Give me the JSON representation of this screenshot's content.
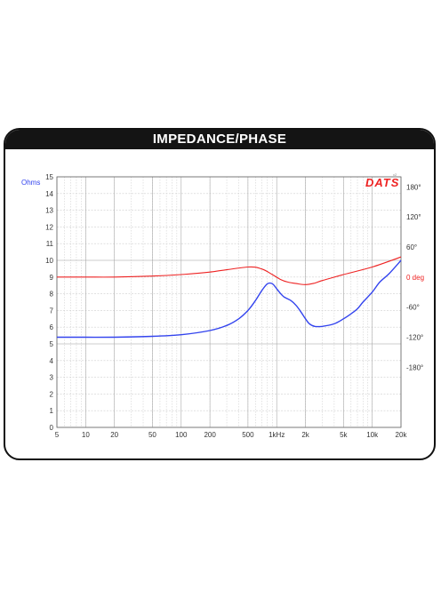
{
  "chart_data": {
    "type": "line",
    "title": "IMPEDANCE/PHASE",
    "logo": "DATS",
    "logo_small": "v2",
    "ylabel": "Ohms",
    "y2label": "0 deg",
    "xscale": "log",
    "xlim": [
      5,
      20000
    ],
    "ylim": [
      0,
      15
    ],
    "y2lim": [
      -300,
      200
    ],
    "grid": true,
    "x_ticks": [
      {
        "value": 5,
        "label": "5"
      },
      {
        "value": 10,
        "label": "10"
      },
      {
        "value": 20,
        "label": "20"
      },
      {
        "value": 50,
        "label": "50"
      },
      {
        "value": 100,
        "label": "100"
      },
      {
        "value": 200,
        "label": "200"
      },
      {
        "value": 500,
        "label": "500"
      },
      {
        "value": 1000,
        "label": "1kHz"
      },
      {
        "value": 2000,
        "label": "2k"
      },
      {
        "value": 5000,
        "label": "5k"
      },
      {
        "value": 10000,
        "label": "10k"
      },
      {
        "value": 20000,
        "label": "20k"
      }
    ],
    "y_ticks": [
      0,
      1,
      2,
      3,
      4,
      5,
      6,
      7,
      8,
      9,
      10,
      11,
      12,
      13,
      14,
      15
    ],
    "y2_ticks": [
      {
        "value": 180,
        "label": "180°"
      },
      {
        "value": 120,
        "label": "120°"
      },
      {
        "value": 60,
        "label": "60°"
      },
      {
        "value": -60,
        "label": "-60°"
      },
      {
        "value": -120,
        "label": "-120°"
      },
      {
        "value": -180,
        "label": "-180°"
      }
    ],
    "series": [
      {
        "color": "#3344ee",
        "axis": "left",
        "x": [
          5,
          10,
          20,
          50,
          100,
          200,
          300,
          400,
          500,
          600,
          700,
          800,
          900,
          1000,
          1100,
          1200,
          1400,
          1600,
          1800,
          2000,
          2200,
          2500,
          3000,
          4000,
          5000,
          6000,
          7000,
          8000,
          10000,
          12000,
          15000,
          20000
        ],
        "y": [
          5.4,
          5.4,
          5.4,
          5.45,
          5.55,
          5.8,
          6.1,
          6.5,
          7.0,
          7.6,
          8.2,
          8.6,
          8.6,
          8.3,
          8.0,
          7.8,
          7.6,
          7.3,
          6.9,
          6.5,
          6.2,
          6.05,
          6.05,
          6.2,
          6.5,
          6.8,
          7.1,
          7.5,
          8.1,
          8.7,
          9.2,
          10.0
        ]
      },
      {
        "color": "#ee2222",
        "axis": "right",
        "x": [
          5,
          10,
          20,
          50,
          100,
          200,
          500,
          700,
          900,
          1100,
          1300,
          1600,
          2000,
          2500,
          3000,
          5000,
          10000,
          20000
        ],
        "y": [
          0,
          0,
          0,
          2,
          5,
          10,
          20,
          16,
          5,
          -5,
          -10,
          -13,
          -15,
          -12,
          -7,
          5,
          20,
          40
        ]
      }
    ]
  }
}
